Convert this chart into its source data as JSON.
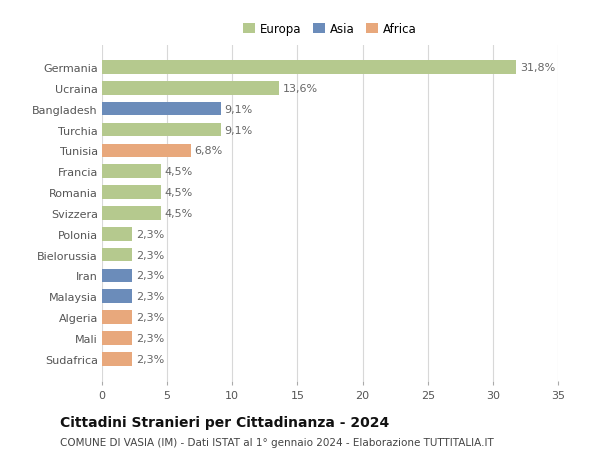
{
  "categories": [
    "Germania",
    "Ucraina",
    "Bangladesh",
    "Turchia",
    "Tunisia",
    "Francia",
    "Romania",
    "Svizzera",
    "Polonia",
    "Bielorussia",
    "Iran",
    "Malaysia",
    "Algeria",
    "Mali",
    "Sudafrica"
  ],
  "values": [
    31.8,
    13.6,
    9.1,
    9.1,
    6.8,
    4.5,
    4.5,
    4.5,
    2.3,
    2.3,
    2.3,
    2.3,
    2.3,
    2.3,
    2.3
  ],
  "labels": [
    "31,8%",
    "13,6%",
    "9,1%",
    "9,1%",
    "6,8%",
    "4,5%",
    "4,5%",
    "4,5%",
    "2,3%",
    "2,3%",
    "2,3%",
    "2,3%",
    "2,3%",
    "2,3%",
    "2,3%"
  ],
  "continents": [
    "Europa",
    "Europa",
    "Asia",
    "Europa",
    "Africa",
    "Europa",
    "Europa",
    "Europa",
    "Europa",
    "Europa",
    "Asia",
    "Asia",
    "Africa",
    "Africa",
    "Africa"
  ],
  "colors": {
    "Europa": "#b5c98e",
    "Asia": "#6b8cba",
    "Africa": "#e8a87c"
  },
  "legend_labels": [
    "Europa",
    "Asia",
    "Africa"
  ],
  "legend_colors": [
    "#b5c98e",
    "#6b8cba",
    "#e8a87c"
  ],
  "title": "Cittadini Stranieri per Cittadinanza - 2024",
  "subtitle": "COMUNE DI VASIA (IM) - Dati ISTAT al 1° gennaio 2024 - Elaborazione TUTTITALIA.IT",
  "xlim": [
    0,
    35
  ],
  "xticks": [
    0,
    5,
    10,
    15,
    20,
    25,
    30,
    35
  ],
  "bg_color": "#ffffff",
  "grid_color": "#d8d8d8",
  "bar_height": 0.65,
  "label_fontsize": 8,
  "tick_fontsize": 8,
  "title_fontsize": 10,
  "subtitle_fontsize": 7.5
}
